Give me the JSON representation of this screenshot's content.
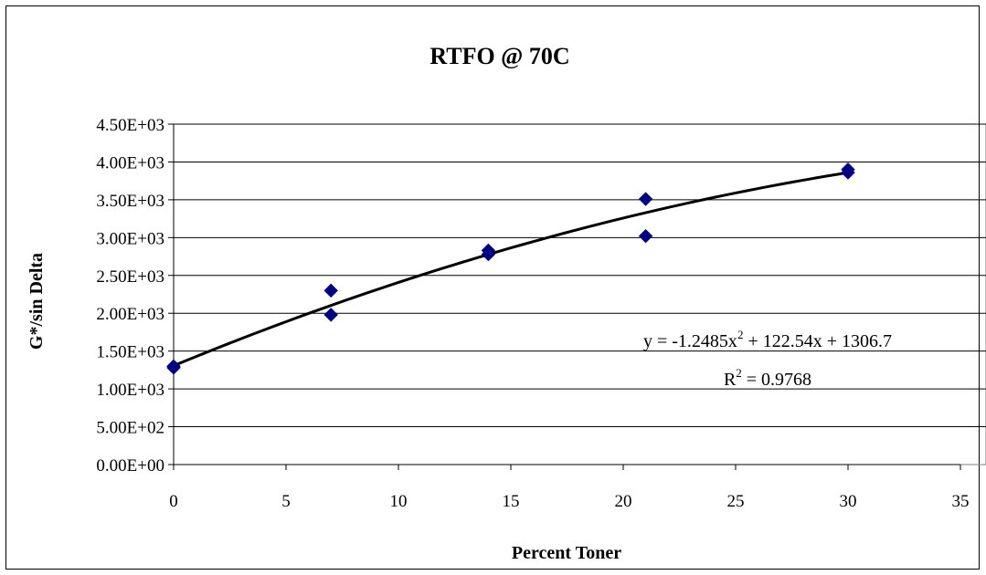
{
  "chart_data": {
    "type": "scatter",
    "title": "RTFO @ 70C",
    "xlabel": "Percent Toner",
    "ylabel": "G*/sin Delta",
    "xlim": [
      0,
      35
    ],
    "ylim": [
      0,
      4500
    ],
    "x_ticks": [
      0,
      5,
      10,
      15,
      20,
      25,
      30,
      35
    ],
    "x_tick_labels": [
      "0",
      "5",
      "10",
      "15",
      "20",
      "25",
      "30",
      "35"
    ],
    "y_ticks": [
      0,
      500,
      1000,
      1500,
      2000,
      2500,
      3000,
      3500,
      4000,
      4500
    ],
    "y_tick_labels": [
      "0.00E+00",
      "5.00E+02",
      "1.00E+03",
      "1.50E+03",
      "2.00E+03",
      "2.50E+03",
      "3.00E+03",
      "3.50E+03",
      "4.00E+03",
      "4.50E+03"
    ],
    "grid": "horizontal",
    "series": [
      {
        "marker": "diamond",
        "color": "#000080",
        "points": [
          {
            "x": 0,
            "y": 1280
          },
          {
            "x": 0,
            "y": 1300
          },
          {
            "x": 7,
            "y": 2300
          },
          {
            "x": 7,
            "y": 1980
          },
          {
            "x": 14,
            "y": 2830
          },
          {
            "x": 14,
            "y": 2780
          },
          {
            "x": 21,
            "y": 3510
          },
          {
            "x": 21,
            "y": 3020
          },
          {
            "x": 30,
            "y": 3900
          },
          {
            "x": 30,
            "y": 3860
          }
        ]
      }
    ],
    "trendline": {
      "type": "polynomial",
      "coefficients": [
        -1.2485,
        122.54,
        1306.7
      ],
      "x_range": [
        0,
        30
      ],
      "color": "#000000",
      "equation_parts": {
        "prefix": "y = -1.2485x",
        "exponent": "2",
        "suffix": " + 122.54x + 1306.7"
      },
      "r2_parts": {
        "prefix": "R",
        "exponent": "2",
        "suffix": " = 0.9768"
      }
    }
  }
}
